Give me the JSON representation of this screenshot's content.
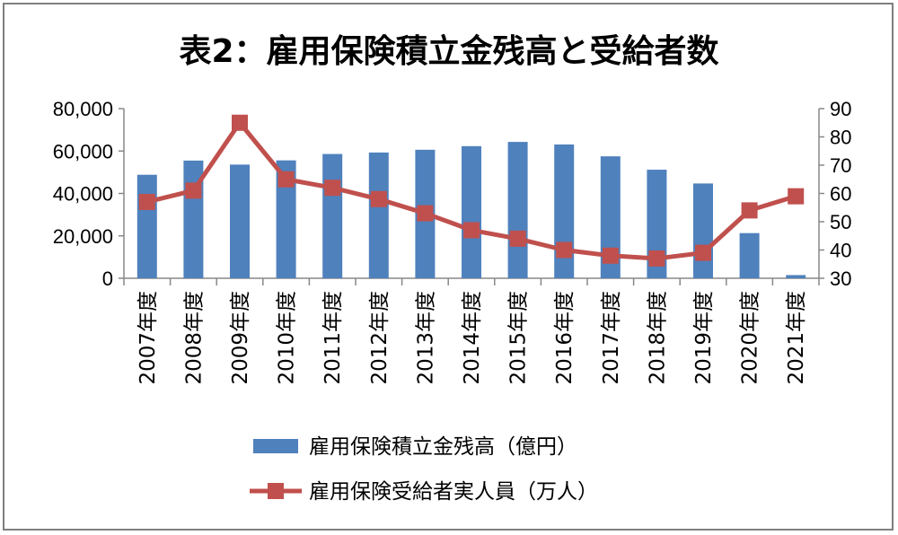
{
  "chart_data": {
    "type": "bar+line",
    "title": "表2：雇用保険積立金残高と受給者数",
    "categories": [
      "2007年度",
      "2008年度",
      "2009年度",
      "2010年度",
      "2011年度",
      "2012年度",
      "2013年度",
      "2014年度",
      "2015年度",
      "2016年度",
      "2017年度",
      "2018年度",
      "2019年度",
      "2020年度",
      "2021年度"
    ],
    "series": [
      {
        "name": "雇用保険積立金残高（億円）",
        "type": "bar",
        "axis": "left",
        "color": "#4f81bd",
        "values": [
          48800,
          55500,
          53600,
          55600,
          58600,
          59300,
          60600,
          62300,
          64300,
          63100,
          57500,
          51200,
          44700,
          21300,
          1500
        ]
      },
      {
        "name": "雇用保険受給者実人員（万人）",
        "type": "line",
        "axis": "right",
        "color": "#c0504d",
        "marker": "square",
        "values": [
          57,
          61,
          85,
          65,
          62,
          58,
          53,
          47,
          44,
          40,
          38,
          37,
          39,
          54,
          59
        ]
      }
    ],
    "y_left": {
      "min": 0,
      "max": 80000,
      "ticks": [
        "0",
        "20,000",
        "40,000",
        "60,000",
        "80,000"
      ]
    },
    "y_right": {
      "min": 30,
      "max": 90,
      "ticks": [
        "30",
        "40",
        "50",
        "60",
        "70",
        "80",
        "90"
      ]
    },
    "grid": false,
    "legend_position": "bottom"
  }
}
